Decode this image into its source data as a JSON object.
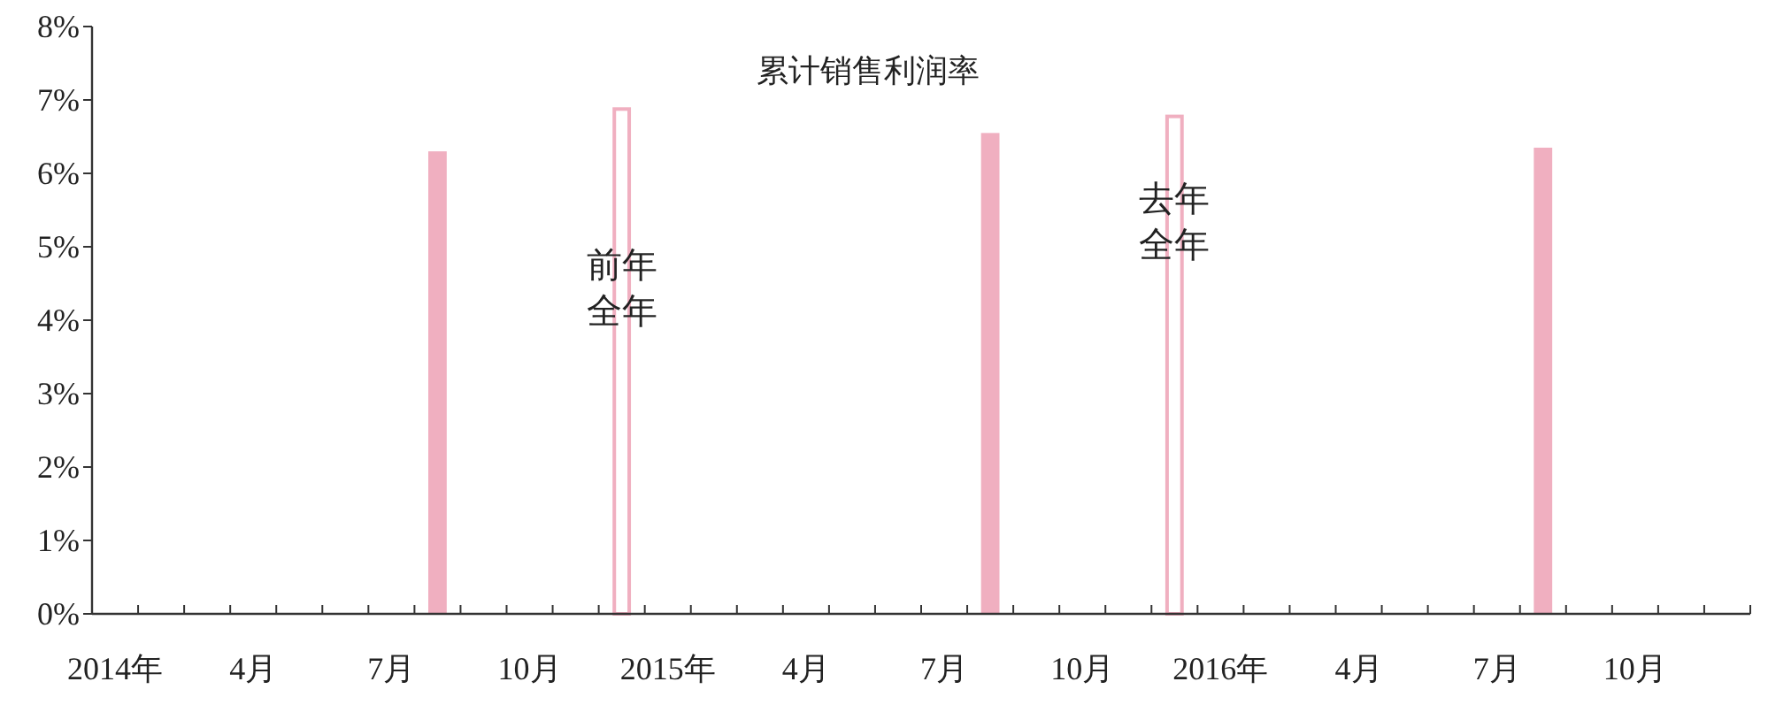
{
  "chart_data": {
    "type": "bar",
    "title": "累计销售利润率",
    "categories": [
      "2014年",
      null,
      null,
      "4月",
      null,
      null,
      "7月",
      null,
      null,
      "10月",
      null,
      null,
      "2015年",
      null,
      null,
      "4月",
      null,
      null,
      "7月",
      null,
      null,
      "10月",
      null,
      null,
      "2016年",
      null,
      null,
      "4月",
      null,
      null,
      "7月",
      null,
      null,
      "10月",
      null,
      null
    ],
    "series": [
      {
        "color": "#f0afc0",
        "values": [
          null,
          null,
          null,
          null,
          null,
          null,
          null,
          6.3,
          null,
          null,
          null,
          null,
          null,
          null,
          null,
          null,
          null,
          null,
          null,
          6.55,
          null,
          null,
          null,
          null,
          null,
          null,
          null,
          null,
          null,
          null,
          null,
          6.35,
          null,
          null,
          null,
          null
        ]
      },
      {
        "color": "#f0afc0",
        "values": [
          null,
          null,
          null,
          null,
          null,
          null,
          null,
          null,
          null,
          null,
          null,
          6.9,
          null,
          null,
          null,
          null,
          null,
          null,
          null,
          null,
          null,
          null,
          null,
          6.8,
          null,
          null,
          null,
          null,
          null,
          null,
          null,
          null,
          null,
          null,
          null,
          null
        ]
      }
    ],
    "annotations": [
      {
        "text": "前年全年",
        "y": 4.3
      },
      {
        "text": "去年全年",
        "y": 5.2
      }
    ],
    "ylim": [
      0,
      8
    ],
    "yticks": [
      {
        "value": 0,
        "label": "0%"
      },
      {
        "value": 1,
        "label": "1%"
      },
      {
        "value": 2,
        "label": "2%"
      },
      {
        "value": 3,
        "label": "3%"
      },
      {
        "value": 4,
        "label": "4%"
      },
      {
        "value": 5,
        "label": "5%"
      },
      {
        "value": 6,
        "label": "6%"
      },
      {
        "value": 7,
        "label": "7%"
      },
      {
        "value": 8,
        "label": "8%"
      }
    ],
    "grid": false
  }
}
